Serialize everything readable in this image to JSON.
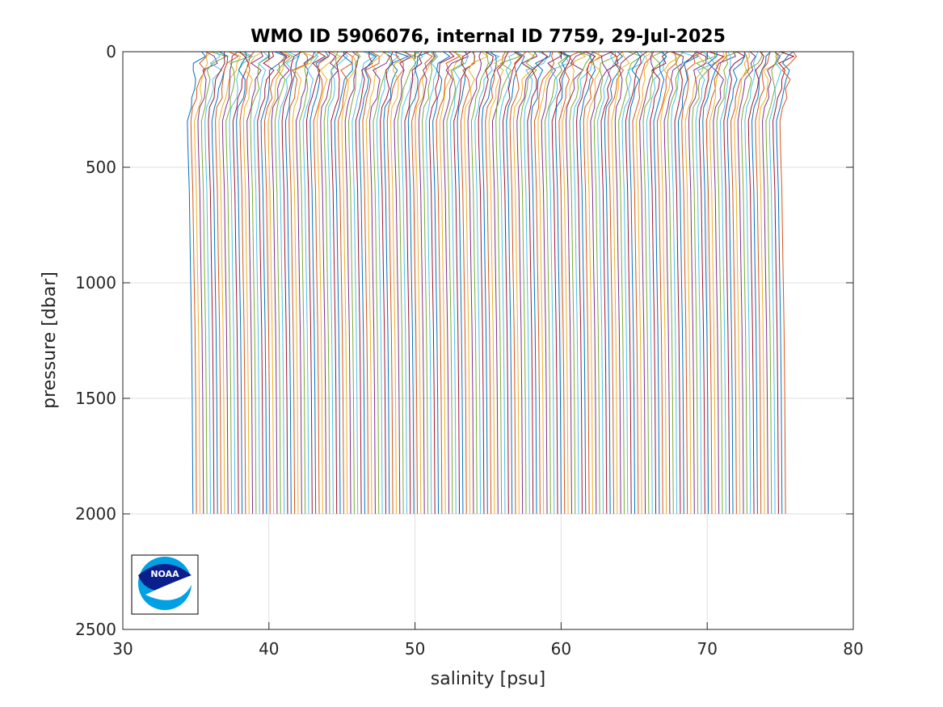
{
  "chart_data": {
    "type": "line",
    "title": "WMO ID 5906076, internal ID 7759, 29-Jul-2025",
    "xlabel": "salinity [psu]",
    "ylabel": "pressure [dbar]",
    "xlim": [
      30,
      80
    ],
    "ylim": [
      0,
      2500
    ],
    "y_reversed": true,
    "grid": true,
    "xticks": [
      "30",
      "40",
      "50",
      "60",
      "70",
      "80"
    ],
    "yticks": [
      "0",
      "500",
      "1000",
      "1500",
      "2000",
      "2500"
    ],
    "profiles": {
      "count": 170,
      "first_deep_salinity": 34.8,
      "offset_per_profile": 0.24,
      "pressure_max": 2000,
      "colors": [
        "#0072BD",
        "#D95319",
        "#EDB120",
        "#7E2F8E",
        "#77AC30",
        "#4DBEEE",
        "#A2142F"
      ]
    },
    "logo": {
      "name": "noaa-logo",
      "text": "NOAA",
      "position": "bottom-left"
    }
  }
}
